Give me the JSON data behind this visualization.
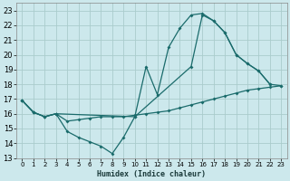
{
  "xlabel": "Humidex (Indice chaleur)",
  "xlim": [
    -0.5,
    23.5
  ],
  "ylim": [
    13,
    23.5
  ],
  "yticks": [
    13,
    14,
    15,
    16,
    17,
    18,
    19,
    20,
    21,
    22,
    23
  ],
  "xticks": [
    0,
    1,
    2,
    3,
    4,
    5,
    6,
    7,
    8,
    9,
    10,
    11,
    12,
    13,
    14,
    15,
    16,
    17,
    18,
    19,
    20,
    21,
    22,
    23
  ],
  "bg_color": "#cce8ec",
  "grid_color": "#aacccc",
  "line_color": "#1a6b6b",
  "curve1_x": [
    0,
    1,
    2,
    3,
    4,
    5,
    6,
    7,
    8,
    9,
    10,
    11,
    12,
    13,
    14,
    15,
    16,
    17,
    18,
    19,
    20,
    21,
    22
  ],
  "curve1_y": [
    16.9,
    16.1,
    15.8,
    16.0,
    14.8,
    14.4,
    14.1,
    13.8,
    13.3,
    14.4,
    15.8,
    19.2,
    17.3,
    20.5,
    21.8,
    22.7,
    22.8,
    22.3,
    21.5,
    20.0,
    19.4,
    18.9,
    18.0
  ],
  "curve2_x": [
    0,
    1,
    2,
    3,
    4,
    5,
    6,
    7,
    8,
    9,
    10,
    11,
    12,
    13,
    14,
    15,
    16,
    17,
    18,
    19,
    20,
    21,
    22,
    23
  ],
  "curve2_y": [
    16.9,
    16.1,
    15.8,
    16.0,
    15.5,
    15.6,
    15.7,
    15.8,
    15.8,
    15.8,
    15.9,
    16.0,
    16.1,
    16.2,
    16.4,
    16.6,
    16.8,
    17.0,
    17.2,
    17.4,
    17.6,
    17.7,
    17.8,
    17.9
  ],
  "curve3_x": [
    0,
    1,
    2,
    3,
    10,
    15,
    16,
    17,
    18,
    19,
    20,
    21,
    22,
    23
  ],
  "curve3_y": [
    16.9,
    16.1,
    15.8,
    16.0,
    15.8,
    19.2,
    22.7,
    22.3,
    21.5,
    20.0,
    19.4,
    18.9,
    18.0,
    17.9
  ]
}
